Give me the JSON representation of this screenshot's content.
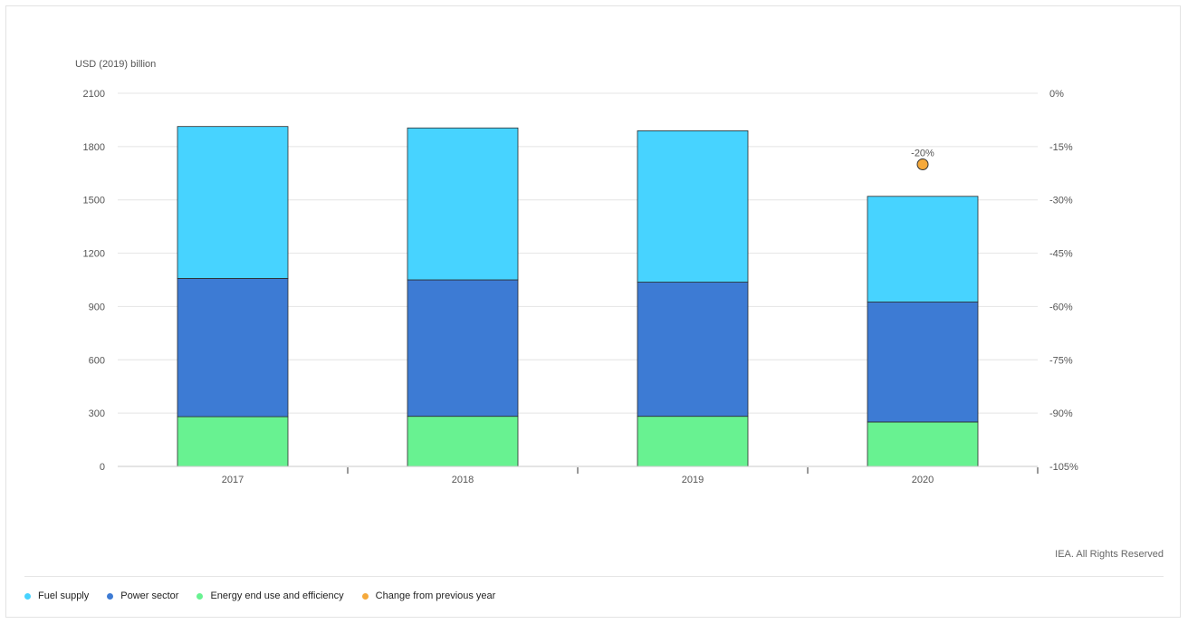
{
  "chart_data": {
    "type": "bar",
    "stacked": true,
    "categories": [
      "2017",
      "2018",
      "2019",
      "2020"
    ],
    "y_unit_label": "USD (2019) billion",
    "ylim": [
      0,
      2100
    ],
    "y_ticks": [
      "0",
      "300",
      "600",
      "900",
      "1200",
      "1500",
      "1800",
      "2100"
    ],
    "y2lim": [
      -105,
      0
    ],
    "y2_ticks": [
      "-105%",
      "-90%",
      "-75%",
      "-60%",
      "-45%",
      "-30%",
      "-15%",
      "0%"
    ],
    "grid": true,
    "series": [
      {
        "name": "Energy end use and efficiency",
        "values": [
          280,
          282,
          282,
          250
        ],
        "color": "#68f291"
      },
      {
        "name": "Power sector",
        "values": [
          778,
          768,
          755,
          675
        ],
        "color": "#3d7bd4"
      },
      {
        "name": "Fuel supply",
        "values": [
          855,
          855,
          852,
          595
        ],
        "color": "#47d3ff"
      }
    ],
    "secondary_series": {
      "name": "Change from previous year",
      "axis": "right",
      "values": [
        null,
        null,
        null,
        -20
      ],
      "labels": [
        "",
        "",
        "",
        "-20%"
      ],
      "color": "#f5a93b"
    }
  },
  "legend": {
    "items": [
      {
        "label": "Fuel supply",
        "color": "#47d3ff"
      },
      {
        "label": "Power sector",
        "color": "#3d7bd4"
      },
      {
        "label": "Energy end use and efficiency",
        "color": "#68f291"
      },
      {
        "label": "Change from previous year",
        "color": "#f5a93b"
      }
    ]
  },
  "footer": {
    "copyright": "IEA. All Rights Reserved"
  }
}
